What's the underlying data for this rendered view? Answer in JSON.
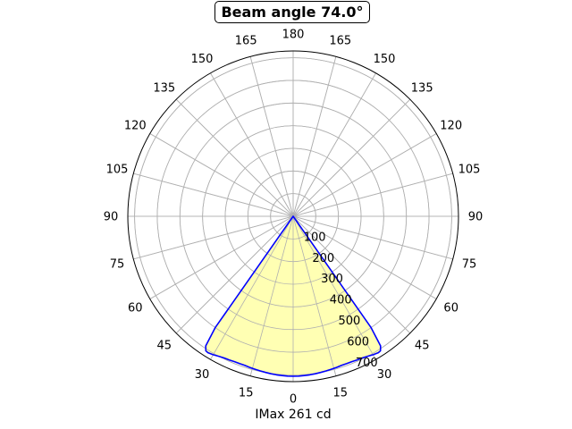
{
  "chart_data": {
    "type": "polar",
    "title": "Beam angle 74.0°",
    "xlabel": "IMax 261 cd",
    "angle_tick_labels": [
      "180",
      "165",
      "150",
      "135",
      "120",
      "105",
      "90",
      "75",
      "60",
      "45",
      "30",
      "15",
      "0",
      "15",
      "30",
      "45",
      "60",
      "75",
      "90",
      "105",
      "120",
      "135",
      "150",
      "165"
    ],
    "angle_tick_degrees": [
      180,
      165,
      150,
      135,
      120,
      105,
      90,
      75,
      60,
      45,
      30,
      15,
      0,
      -15,
      -30,
      -45,
      -60,
      -75,
      -90,
      -105,
      -120,
      -135,
      -150,
      -165
    ],
    "radial_ticks": [
      100,
      200,
      300,
      400,
      500,
      600,
      700
    ],
    "radial_tick_labels": [
      "100",
      "200",
      "300",
      "400",
      "500",
      "600",
      "700"
    ],
    "rlim": [
      0,
      730
    ],
    "grid": true,
    "series": [
      {
        "color": "#0000ff",
        "fill": "#ffffb3",
        "theta_deg": [
          -37,
          -35,
          -34,
          -33,
          -32,
          -30,
          -28,
          -26,
          -24,
          -22,
          -20,
          -18,
          -16,
          -14,
          -12,
          -10,
          -8,
          -6,
          -4,
          -2,
          0,
          2,
          4,
          6,
          8,
          10,
          12,
          14,
          16,
          18,
          20,
          22,
          24,
          26,
          28,
          30,
          32,
          33,
          34,
          35,
          37
        ],
        "r": [
          0,
          600,
          690,
          708,
          710,
          706,
          700,
          696,
          694,
          692,
          692,
          692,
          694,
          696,
          698,
          700,
          702,
          704,
          705,
          706,
          706,
          706,
          705,
          704,
          702,
          700,
          698,
          696,
          694,
          692,
          692,
          692,
          694,
          696,
          700,
          706,
          710,
          708,
          690,
          600,
          0
        ]
      }
    ]
  }
}
